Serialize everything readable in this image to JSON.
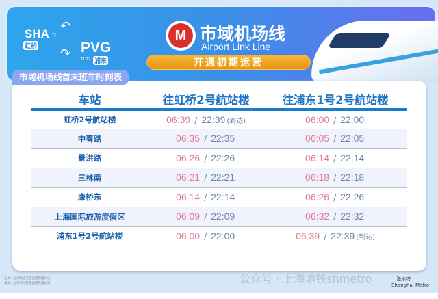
{
  "banner": {
    "sha": "SHA",
    "sha_terminal": "T2",
    "sha_cn": "虹桥",
    "pvg": "PVG",
    "pvg_terminal": "T1 T2",
    "pvg_cn": "浦东",
    "title_cn": "市域机场线",
    "title_en": "Airport Link Line",
    "status": "开通初期运营"
  },
  "section_title": "市域机场线首末班车时刻表",
  "table": {
    "headers": [
      "车站",
      "往虹桥2号航站楼",
      "往浦东1号2号航站楼"
    ],
    "rows": [
      {
        "station": "虹桥2号航站楼",
        "a_first": "06:39",
        "a_last": "22:39",
        "a_note": "(到达)",
        "b_first": "06:00",
        "b_last": "22:00",
        "b_note": ""
      },
      {
        "station": "中春路",
        "a_first": "06:35",
        "a_last": "22:35",
        "a_note": "",
        "b_first": "06:05",
        "b_last": "22:05",
        "b_note": ""
      },
      {
        "station": "景洪路",
        "a_first": "06:26",
        "a_last": "22:26",
        "a_note": "",
        "b_first": "06:14",
        "b_last": "22:14",
        "b_note": ""
      },
      {
        "station": "三林南",
        "a_first": "06:21",
        "a_last": "22:21",
        "a_note": "",
        "b_first": "06:18",
        "b_last": "22:18",
        "b_note": ""
      },
      {
        "station": "康桥东",
        "a_first": "06:14",
        "a_last": "22:14",
        "a_note": "",
        "b_first": "06:26",
        "b_last": "22:26",
        "b_note": ""
      },
      {
        "station": "上海国际旅游度假区",
        "a_first": "06:09",
        "a_last": "22:09",
        "a_note": "",
        "b_first": "06:32",
        "b_last": "22:32",
        "b_note": ""
      },
      {
        "station": "浦东1号2号航站楼",
        "a_first": "06:00",
        "a_last": "22:00",
        "a_note": "",
        "b_first": "06:39",
        "b_last": "22:39",
        "b_note": "(到达)"
      }
    ],
    "separator": "/"
  },
  "footer": {
    "line1": "主办：上海轨道交通运营管理中心",
    "line2": "承办：上海市域铁路运营有限公司",
    "watermark": "公众号 · 上海地铁shmetro",
    "brand": "上海地铁",
    "brand_en": "Shanghai Metro"
  },
  "colors": {
    "first": "#e17896",
    "last": "#6d86ad",
    "station": "#1d62ad",
    "header": "#2076c4",
    "pill": "#f0a524"
  }
}
